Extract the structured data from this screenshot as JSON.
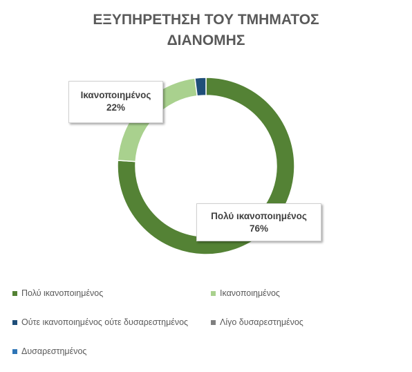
{
  "chart_data": {
    "type": "pie",
    "subtype": "donut",
    "title_lines": [
      "ΕΞΥΠΗΡΕΤΗΣΗ ΤΟΥ ΤΜΗΜΑΤΟΣ",
      "ΔΙΑΝΟΜΗΣ"
    ],
    "categories": [
      "Πολύ ικανοποιημένος",
      "Ικανοποιημένος",
      "Ούτε ικανοποιημένος ούτε δυσαρεστημένος",
      "Λίγο δυσαρεστημένος",
      "Δυσαρεστημένος"
    ],
    "values": [
      76,
      22,
      2,
      0,
      0
    ],
    "colors": [
      "#548235",
      "#a9d18e",
      "#1f4e79",
      "#7f7f7f",
      "#2e75b6"
    ],
    "data_labels": [
      {
        "category_index": 0,
        "name": "Πολύ ικανοποιημένος",
        "value_text": "76%"
      },
      {
        "category_index": 1,
        "name": "Ικανοποιημένος",
        "value_text": "22%"
      }
    ],
    "legend_position": "bottom"
  }
}
